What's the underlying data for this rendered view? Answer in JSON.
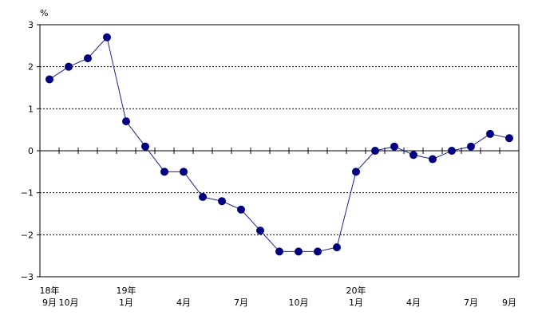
{
  "chart_data": {
    "type": "line",
    "title": "",
    "xlabel": "",
    "ylabel": "%",
    "ylim": [
      -3,
      3
    ],
    "y_ticks": [
      3,
      2,
      1,
      0,
      -1,
      -2,
      -3
    ],
    "grid": true,
    "grid_style": "dashed horizontal",
    "legend": "none",
    "colors": {
      "line": "#1f1f8f",
      "marker": "#000080"
    },
    "x": [
      "18年9月",
      "18年10月",
      "18年11月",
      "18年12月",
      "19年1月",
      "19年2月",
      "19年3月",
      "19年4月",
      "19年5月",
      "19年6月",
      "19年7月",
      "19年8月",
      "19年9月",
      "19年10月",
      "19年11月",
      "19年12月",
      "20年1月",
      "20年2月",
      "20年3月",
      "20年4月",
      "20年5月",
      "20年6月",
      "20年7月",
      "20年8月",
      "20年9月"
    ],
    "series": [
      {
        "values": [
          1.7,
          2.0,
          2.2,
          2.7,
          0.7,
          0.1,
          -0.5,
          -0.5,
          -1.1,
          -1.2,
          -1.4,
          -1.9,
          -2.4,
          -2.4,
          -2.4,
          -2.3,
          -0.5,
          0.0,
          0.1,
          -0.1,
          -0.2,
          0.0,
          0.1,
          0.4,
          0.3
        ]
      }
    ],
    "x_labels": [
      {
        "index": 0,
        "year": "18年",
        "month": "9月"
      },
      {
        "index": 1,
        "year": "",
        "month": "10月"
      },
      {
        "index": 4,
        "year": "19年",
        "month": "1月"
      },
      {
        "index": 7,
        "year": "",
        "month": "4月"
      },
      {
        "index": 10,
        "year": "",
        "month": "7月"
      },
      {
        "index": 13,
        "year": "",
        "month": "10月"
      },
      {
        "index": 16,
        "year": "20年",
        "month": "1月"
      },
      {
        "index": 19,
        "year": "",
        "month": "4月"
      },
      {
        "index": 22,
        "year": "",
        "month": "7月"
      },
      {
        "index": 24,
        "year": "",
        "month": "9月"
      }
    ]
  }
}
